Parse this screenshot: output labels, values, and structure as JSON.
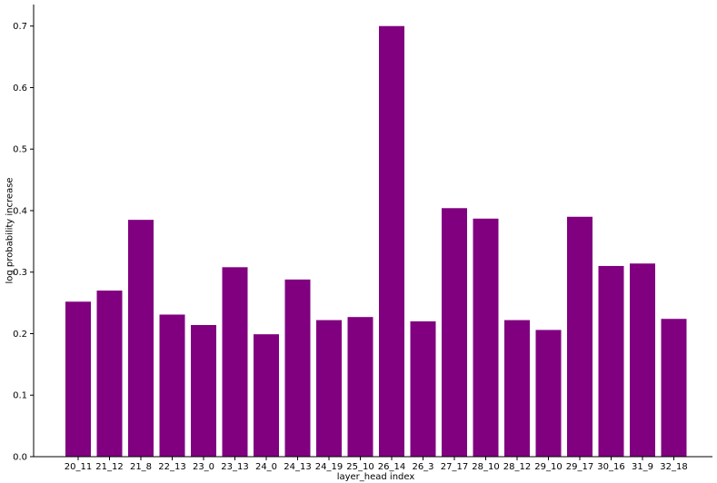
{
  "chart_data": {
    "type": "bar",
    "categories": [
      "20_11",
      "21_12",
      "21_8",
      "22_13",
      "23_0",
      "23_13",
      "24_0",
      "24_13",
      "24_19",
      "25_10",
      "26_14",
      "26_3",
      "27_17",
      "28_10",
      "28_12",
      "29_10",
      "29_17",
      "30_16",
      "31_9",
      "32_18"
    ],
    "values": [
      0.252,
      0.27,
      0.385,
      0.231,
      0.214,
      0.308,
      0.199,
      0.288,
      0.222,
      0.227,
      0.7,
      0.22,
      0.404,
      0.387,
      0.222,
      0.206,
      0.39,
      0.31,
      0.314,
      0.224
    ],
    "title": "",
    "xlabel": "layer_head index",
    "ylabel": "log probability increase",
    "ylim": [
      0,
      0.735
    ],
    "yticks": [
      "0.0",
      "0.1",
      "0.2",
      "0.3",
      "0.4",
      "0.5",
      "0.6",
      "0.7"
    ],
    "bar_color": "#800080",
    "grid": false,
    "legend": "none"
  }
}
